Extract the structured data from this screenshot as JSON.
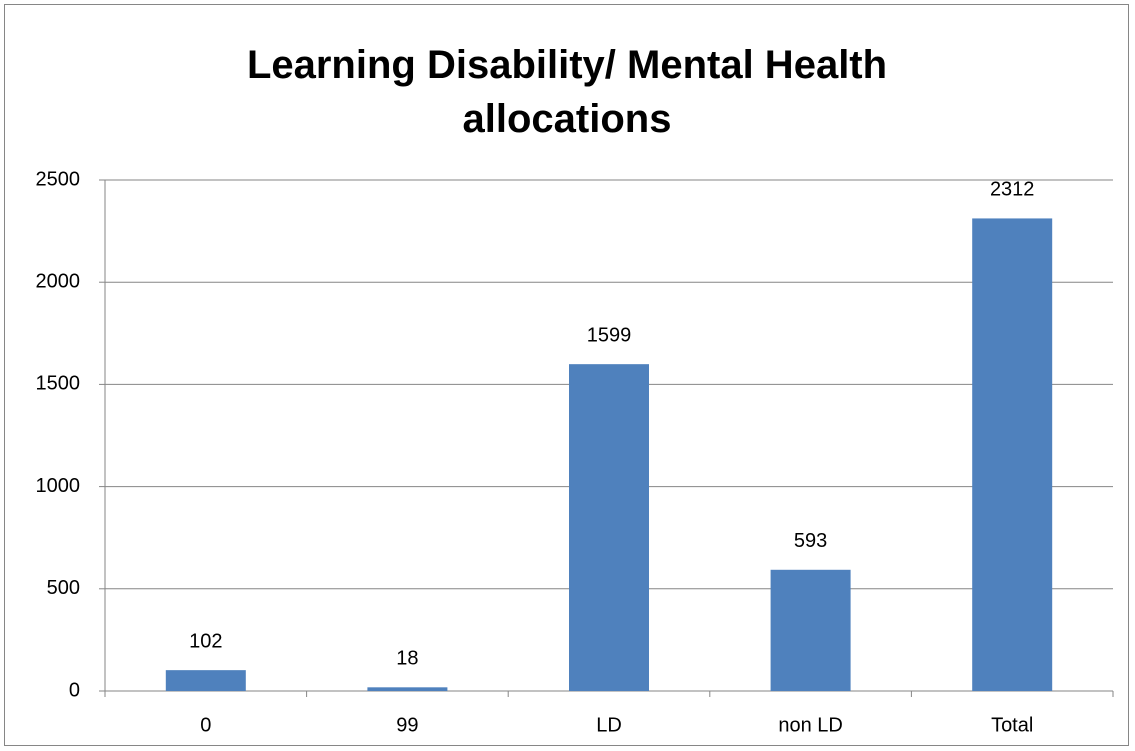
{
  "chart_data": {
    "type": "bar",
    "title": "Learning Disability/ Mental Health allocations",
    "categories": [
      "0",
      "99",
      "LD",
      "non LD",
      "Total"
    ],
    "values": [
      102,
      18,
      1599,
      593,
      2312
    ],
    "color": "#4f81bd",
    "ylim": [
      0,
      2500
    ],
    "yticks": [
      0,
      500,
      1000,
      1500,
      2000,
      2500
    ],
    "grid": true
  }
}
